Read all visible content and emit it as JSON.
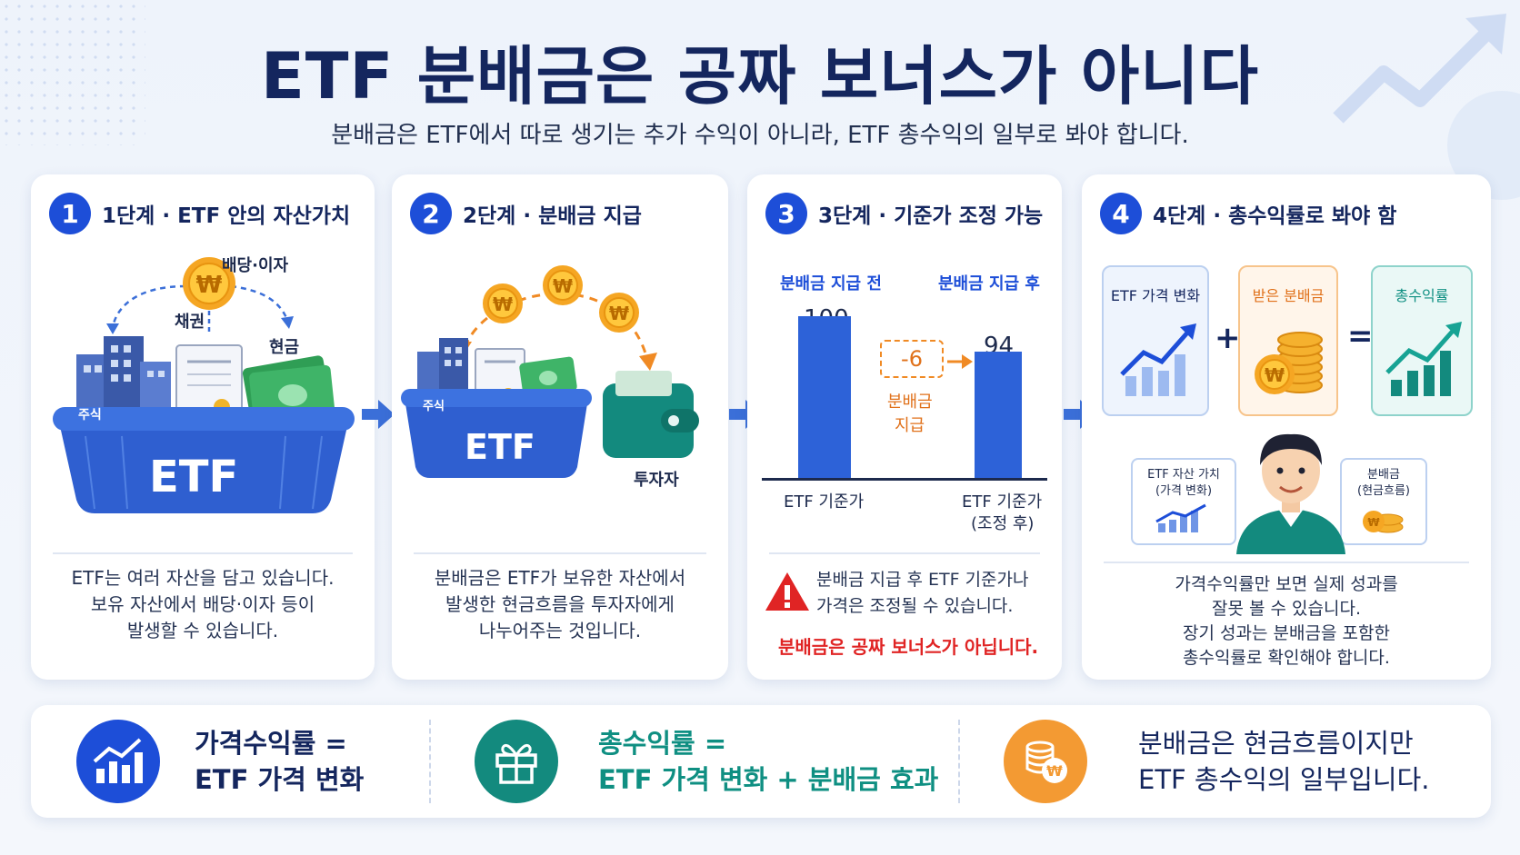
{
  "title": "ETF 분배금은 공짜 보너스가 아니다",
  "subtitle": "분배금은 ETF에서 따로 생기는 추가 수익이 아니라, ETF 총수익의 일부로 봐야 합니다.",
  "steps": [
    {
      "num": "1",
      "title": "1단계 · ETF 안의 자산가치",
      "labels": {
        "dividend": "배당·이자",
        "bond": "채권",
        "cash": "현금",
        "stock": "주식",
        "basket": "ETF"
      },
      "desc": [
        "ETF는 여러 자산을 담고 있습니다.",
        "보유 자산에서 배당·이자 등이",
        "발생할 수 있습니다."
      ]
    },
    {
      "num": "2",
      "title": "2단계 · 분배금 지급",
      "labels": {
        "stock": "주식",
        "basket": "ETF",
        "investor": "투자자"
      },
      "desc": [
        "분배금은 ETF가 보유한 자산에서",
        "발생한 현금흐름을 투자자에게",
        "나누어주는 것입니다."
      ]
    },
    {
      "num": "3",
      "title": "3단계 · 기준가 조정 가능",
      "labels": {
        "before": "분배금 지급 전",
        "after": "분배금 지급 후",
        "value_before": "100",
        "value_after": "94",
        "delta": "-6",
        "delta_label_1": "분배금",
        "delta_label_2": "지급",
        "x_before": "ETF 기준가",
        "x_after_1": "ETF 기준가",
        "x_after_2": "(조정 후)"
      },
      "bars": {
        "before": 100,
        "after": 94
      },
      "desc": [
        "분배금 지급 후 ETF 기준가나",
        "가격은 조정될 수 있습니다."
      ],
      "warning": "분배금은 공짜 보너스가 아닙니다."
    },
    {
      "num": "4",
      "title": "4단계 · 총수익률로 봐야 함",
      "boxes": [
        "ETF 가격 변화",
        "받은 분배금",
        "총수익률"
      ],
      "ops": [
        "+",
        "="
      ],
      "bubble_left": [
        "ETF 자산 가치",
        "(가격 변화)"
      ],
      "bubble_right": [
        "분배금",
        "(현금흐름)"
      ],
      "desc": [
        "가격수익률만 보면 실제 성과를",
        "잘못 볼 수 있습니다.",
        "장기 성과는 분배금을 포함한",
        "총수익률로 확인해야 합니다."
      ]
    }
  ],
  "summary": [
    {
      "lines": [
        "가격수익률 =",
        "ETF 가격 변화"
      ],
      "icon": "bar-chart-icon"
    },
    {
      "lines": [
        "총수익률 =",
        "ETF 가격 변화 + 분배금 효과"
      ],
      "icon": "gift-icon"
    },
    {
      "lines": [
        "분배금은 현금흐름이지만",
        "ETF 총수익의 일부입니다."
      ],
      "icon": "coin-stack-icon"
    }
  ],
  "colors": {
    "navy": "#14265e",
    "blue": "#1d4ed8",
    "teal": "#0f8f82",
    "orange": "#f39a33",
    "red": "#e02424"
  }
}
